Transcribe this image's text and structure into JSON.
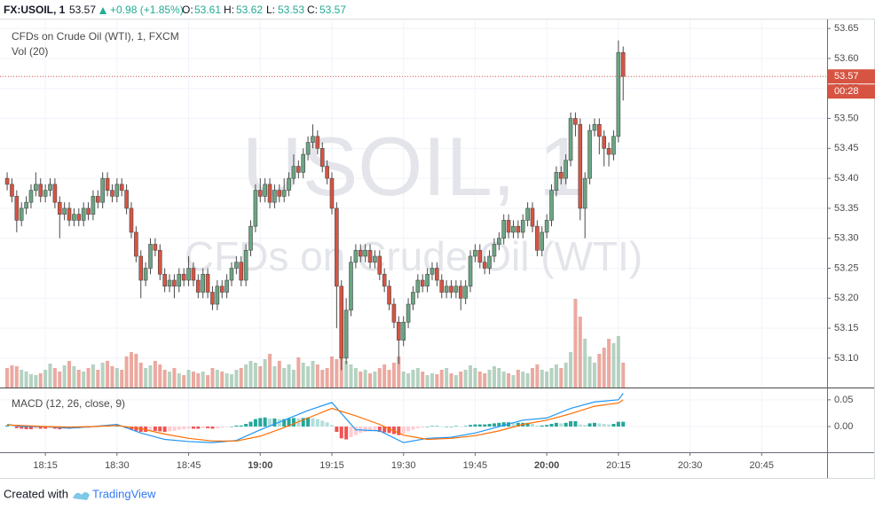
{
  "header": {
    "symbol": "FX:USOIL, 1",
    "last": 53.57,
    "change": "+0.98 (+1.85%)",
    "o_label": "O:",
    "open": 53.61,
    "h_label": "H:",
    "high": 53.62,
    "l_label": "L:",
    "low": 53.53,
    "c_label": "C:",
    "close": 53.57
  },
  "chart_data": [
    {
      "type": "candlestick",
      "title": "CFDs on Crude Oil (WTI), 1, FXCM",
      "volume_label": "Vol (20)",
      "watermark": "USOIL, 1",
      "watermark_sub": "CFDs on Crude Oil (WTI)",
      "countdown": "00:28",
      "up_color": "#6ba583",
      "down_color": "#d75442",
      "grid": true,
      "xlim": [
        1085.5,
        1258.7
      ],
      "ylim": [
        53.051,
        53.665
      ],
      "xticks": [
        {
          "value": 1095,
          "label": "18:15"
        },
        {
          "value": 1110,
          "label": "18:30"
        },
        {
          "value": 1125,
          "label": "18:45"
        },
        {
          "value": 1140,
          "label": "19:00"
        },
        {
          "value": 1155,
          "label": "19:15"
        },
        {
          "value": 1170,
          "label": "19:30"
        },
        {
          "value": 1185,
          "label": "19:45"
        },
        {
          "value": 1200,
          "label": "20:00"
        },
        {
          "value": 1215,
          "label": "20:15"
        },
        {
          "value": 1230,
          "label": "20:30"
        },
        {
          "value": 1245,
          "label": "20:45"
        }
      ],
      "yticks": [
        {
          "value": 53.1,
          "label": "53.10"
        },
        53.15,
        {
          "value": 53.2,
          "label": "53.20"
        },
        53.25,
        {
          "value": 53.3,
          "label": "53.30"
        },
        53.35,
        {
          "value": 53.4,
          "label": "53.40"
        },
        53.45,
        {
          "value": 53.5,
          "label": "53.50"
        },
        53.55,
        {
          "value": 53.6,
          "label": "53.60"
        },
        53.65
      ],
      "x": [
        1087,
        1088,
        1089,
        1090,
        1091,
        1092,
        1093,
        1094,
        1095,
        1096,
        1097,
        1098,
        1099,
        1100,
        1101,
        1102,
        1103,
        1104,
        1105,
        1106,
        1107,
        1108,
        1109,
        1110,
        1111,
        1112,
        1113,
        1114,
        1115,
        1116,
        1117,
        1118,
        1119,
        1120,
        1121,
        1122,
        1123,
        1124,
        1125,
        1126,
        1127,
        1128,
        1129,
        1130,
        1131,
        1132,
        1133,
        1134,
        1135,
        1136,
        1137,
        1138,
        1139,
        1140,
        1141,
        1142,
        1143,
        1144,
        1145,
        1146,
        1147,
        1148,
        1149,
        1150,
        1151,
        1152,
        1153,
        1154,
        1155,
        1156,
        1157,
        1158,
        1159,
        1160,
        1161,
        1162,
        1163,
        1164,
        1165,
        1166,
        1167,
        1168,
        1169,
        1170,
        1171,
        1172,
        1173,
        1174,
        1175,
        1176,
        1177,
        1178,
        1179,
        1180,
        1181,
        1182,
        1183,
        1184,
        1185,
        1186,
        1187,
        1188,
        1189,
        1190,
        1191,
        1192,
        1193,
        1194,
        1195,
        1196,
        1197,
        1198,
        1199,
        1200,
        1201,
        1202,
        1203,
        1204,
        1205,
        1206,
        1207,
        1208,
        1209,
        1210,
        1211,
        1212,
        1213,
        1214,
        1215,
        1216
      ],
      "open": [
        53.4,
        53.39,
        53.37,
        53.33,
        53.35,
        53.36,
        53.38,
        53.39,
        53.37,
        53.38,
        53.39,
        53.36,
        53.34,
        53.35,
        53.33,
        53.34,
        53.33,
        53.35,
        53.34,
        53.37,
        53.36,
        53.4,
        53.38,
        53.37,
        53.39,
        53.38,
        53.35,
        53.31,
        53.27,
        53.23,
        53.25,
        53.29,
        53.28,
        53.24,
        53.22,
        53.23,
        53.22,
        53.24,
        53.23,
        53.25,
        53.23,
        53.21,
        53.24,
        53.21,
        53.19,
        53.22,
        53.21,
        53.23,
        53.25,
        53.26,
        53.23,
        53.28,
        53.32,
        53.38,
        53.37,
        53.39,
        53.36,
        53.38,
        53.37,
        53.38,
        53.4,
        53.42,
        53.41,
        53.44,
        53.46,
        53.47,
        53.45,
        53.42,
        53.4,
        53.35,
        53.22,
        53.1,
        53.18,
        53.26,
        53.28,
        53.27,
        53.28,
        53.26,
        53.27,
        53.24,
        53.22,
        53.19,
        53.16,
        53.13,
        53.16,
        53.19,
        53.21,
        53.23,
        53.22,
        53.24,
        53.25,
        53.23,
        53.21,
        53.22,
        53.21,
        53.22,
        53.2,
        53.22,
        53.27,
        53.28,
        53.26,
        53.25,
        53.27,
        53.29,
        53.3,
        53.33,
        53.31,
        53.32,
        53.31,
        53.33,
        53.35,
        53.32,
        53.28,
        53.31,
        53.33,
        53.38,
        53.41,
        53.4,
        53.43,
        53.5,
        53.49,
        53.35,
        53.4,
        53.48,
        53.49,
        53.47,
        53.45,
        53.44,
        53.47,
        53.61
      ],
      "high": [
        53.41,
        53.4,
        53.38,
        53.36,
        53.37,
        53.39,
        53.41,
        53.4,
        53.39,
        53.4,
        53.4,
        53.37,
        53.36,
        53.36,
        53.35,
        53.35,
        53.36,
        53.36,
        53.38,
        53.38,
        53.41,
        53.41,
        53.39,
        53.4,
        53.4,
        53.39,
        53.36,
        53.32,
        53.28,
        53.26,
        53.3,
        53.3,
        53.29,
        53.25,
        53.24,
        53.24,
        53.25,
        53.25,
        53.27,
        53.26,
        53.24,
        53.25,
        53.25,
        53.22,
        53.23,
        53.23,
        53.24,
        53.26,
        53.27,
        53.27,
        53.29,
        53.33,
        53.39,
        53.4,
        53.4,
        53.4,
        53.39,
        53.39,
        53.4,
        53.41,
        53.44,
        53.43,
        53.45,
        53.47,
        53.49,
        53.48,
        53.46,
        53.43,
        53.41,
        53.36,
        53.23,
        53.2,
        53.27,
        53.29,
        53.29,
        53.29,
        53.29,
        53.28,
        53.28,
        53.25,
        53.23,
        53.2,
        53.17,
        53.17,
        53.2,
        53.22,
        53.24,
        53.24,
        53.25,
        53.26,
        53.26,
        53.24,
        53.23,
        53.23,
        53.23,
        53.23,
        53.23,
        53.28,
        53.29,
        53.29,
        53.27,
        53.28,
        53.3,
        53.31,
        53.34,
        53.34,
        53.33,
        53.33,
        53.34,
        53.36,
        53.36,
        53.33,
        53.32,
        53.34,
        53.39,
        53.42,
        53.42,
        53.44,
        53.51,
        53.51,
        53.5,
        53.41,
        53.49,
        53.5,
        53.5,
        53.48,
        53.46,
        53.48,
        53.63,
        53.62
      ],
      "low": [
        53.38,
        53.36,
        53.31,
        53.32,
        53.34,
        53.35,
        53.37,
        53.36,
        53.36,
        53.37,
        53.35,
        53.3,
        53.33,
        53.32,
        53.32,
        53.32,
        53.32,
        53.33,
        53.33,
        53.35,
        53.35,
        53.37,
        53.36,
        53.36,
        53.37,
        53.34,
        53.3,
        53.26,
        53.2,
        53.22,
        53.24,
        53.27,
        53.23,
        53.21,
        53.21,
        53.2,
        53.21,
        53.22,
        53.22,
        53.22,
        53.2,
        53.2,
        53.2,
        53.18,
        53.18,
        53.2,
        53.2,
        53.22,
        53.24,
        53.22,
        53.22,
        53.27,
        53.31,
        53.36,
        53.36,
        53.35,
        53.35,
        53.36,
        53.36,
        53.37,
        53.39,
        53.4,
        53.4,
        53.43,
        53.45,
        53.44,
        53.41,
        53.39,
        53.34,
        53.15,
        53.08,
        53.09,
        53.17,
        53.25,
        53.26,
        53.26,
        53.25,
        53.25,
        53.23,
        53.21,
        53.18,
        53.15,
        53.09,
        53.12,
        53.15,
        53.18,
        53.2,
        53.21,
        53.21,
        53.23,
        53.22,
        53.2,
        53.2,
        53.2,
        53.2,
        53.18,
        53.19,
        53.21,
        53.26,
        53.25,
        53.24,
        53.24,
        53.26,
        53.28,
        53.29,
        53.3,
        53.3,
        53.3,
        53.3,
        53.32,
        53.31,
        53.27,
        53.27,
        53.3,
        53.32,
        53.37,
        53.39,
        53.39,
        53.42,
        53.47,
        53.33,
        53.3,
        53.39,
        53.47,
        53.44,
        53.42,
        53.42,
        53.43,
        53.46,
        53.53
      ],
      "close": [
        53.39,
        53.37,
        53.33,
        53.35,
        53.36,
        53.38,
        53.39,
        53.37,
        53.38,
        53.39,
        53.36,
        53.34,
        53.35,
        53.33,
        53.34,
        53.33,
        53.35,
        53.34,
        53.37,
        53.36,
        53.4,
        53.38,
        53.37,
        53.39,
        53.38,
        53.35,
        53.31,
        53.27,
        53.23,
        53.25,
        53.29,
        53.28,
        53.24,
        53.22,
        53.23,
        53.22,
        53.24,
        53.23,
        53.25,
        53.23,
        53.21,
        53.24,
        53.21,
        53.19,
        53.22,
        53.21,
        53.23,
        53.25,
        53.26,
        53.23,
        53.28,
        53.32,
        53.38,
        53.37,
        53.39,
        53.36,
        53.38,
        53.37,
        53.38,
        53.4,
        53.42,
        53.41,
        53.44,
        53.46,
        53.47,
        53.45,
        53.42,
        53.4,
        53.35,
        53.22,
        53.1,
        53.18,
        53.26,
        53.28,
        53.27,
        53.28,
        53.26,
        53.27,
        53.24,
        53.22,
        53.19,
        53.16,
        53.13,
        53.16,
        53.19,
        53.21,
        53.23,
        53.22,
        53.24,
        53.25,
        53.23,
        53.21,
        53.22,
        53.21,
        53.22,
        53.2,
        53.22,
        53.27,
        53.28,
        53.26,
        53.25,
        53.27,
        53.29,
        53.3,
        53.33,
        53.31,
        53.32,
        53.31,
        53.33,
        53.35,
        53.32,
        53.28,
        53.31,
        53.33,
        53.38,
        53.41,
        53.4,
        53.43,
        53.5,
        53.49,
        53.35,
        53.4,
        53.48,
        53.49,
        53.47,
        53.45,
        53.44,
        53.47,
        53.61,
        53.57
      ],
      "volume": [
        22,
        25,
        24,
        20,
        18,
        15,
        14,
        16,
        20,
        27,
        22,
        18,
        25,
        30,
        24,
        20,
        18,
        22,
        26,
        20,
        28,
        30,
        24,
        22,
        20,
        35,
        40,
        38,
        28,
        22,
        25,
        30,
        26,
        20,
        18,
        22,
        16,
        14,
        20,
        18,
        16,
        18,
        14,
        22,
        20,
        18,
        16,
        15,
        20,
        22,
        26,
        30,
        28,
        24,
        32,
        38,
        24,
        30,
        22,
        26,
        20,
        34,
        28,
        24,
        30,
        26,
        20,
        22,
        35,
        32,
        38,
        30,
        26,
        22,
        18,
        20,
        16,
        18,
        22,
        26,
        20,
        28,
        35,
        18,
        16,
        20,
        22,
        18,
        14,
        16,
        15,
        20,
        22,
        16,
        14,
        18,
        20,
        25,
        22,
        18,
        16,
        20,
        24,
        22,
        18,
        16,
        14,
        20,
        18,
        16,
        22,
        26,
        20,
        18,
        22,
        26,
        22,
        28,
        40,
        100,
        80,
        55,
        35,
        28,
        38,
        45,
        55,
        50,
        58,
        28
      ]
    },
    {
      "type": "macd",
      "title": "MACD (12, 26, close, 9)",
      "ylim": [
        -0.048,
        0.068
      ],
      "yticks": [
        0.05,
        {
          "value": 0,
          "label": "0.00"
        }
      ],
      "grid": true,
      "hist_colors": [
        "#26a69a",
        "#b2dfdb",
        "#ffcdd2",
        "#ef5350"
      ],
      "hist": [
        0.002,
        0,
        -0.003,
        -0.004,
        -0.005,
        -0.005,
        -0.004,
        -0.004,
        -0.004,
        -0.003,
        -0.004,
        -0.005,
        -0.004,
        -0.004,
        -0.003,
        -0.003,
        -0.002,
        -0.002,
        -0.001,
        0,
        0.002,
        0.002,
        0.001,
        0.001,
        0,
        -0.003,
        -0.006,
        -0.008,
        -0.01,
        -0.01,
        -0.008,
        -0.008,
        -0.009,
        -0.01,
        -0.009,
        -0.008,
        -0.006,
        -0.005,
        -0.004,
        -0.004,
        -0.004,
        -0.003,
        -0.003,
        -0.004,
        -0.003,
        -0.002,
        -0.001,
        0,
        0.002,
        0.002,
        0.005,
        0.009,
        0.014,
        0.016,
        0.017,
        0.015,
        0.015,
        0.014,
        0.014,
        0.015,
        0.016,
        0.015,
        0.016,
        0.017,
        0.016,
        0.014,
        0.011,
        0.008,
        0.003,
        -0.01,
        -0.022,
        -0.024,
        -0.02,
        -0.016,
        -0.012,
        -0.01,
        -0.009,
        -0.008,
        -0.01,
        -0.011,
        -0.012,
        -0.014,
        -0.016,
        -0.013,
        -0.009,
        -0.006,
        -0.003,
        -0.002,
        0,
        0.001,
        0.001,
        0,
        0,
        0,
        0.001,
        0,
        0.001,
        0.003,
        0.004,
        0.004,
        0.004,
        0.005,
        0.006,
        0.007,
        0.008,
        0.008,
        0.007,
        0.007,
        0.007,
        0.007,
        0.005,
        0.002,
        0.002,
        0.003,
        0.005,
        0.007,
        0.006,
        0.007,
        0.01,
        0.01,
        0.004,
        0.003,
        0.006,
        0.007,
        0.006,
        0.005,
        0.004,
        0.005,
        0.009,
        0.009
      ],
      "series": [
        {
          "color": "#2196f3",
          "x": [
            1087,
            1090,
            1095,
            1100,
            1105,
            1110,
            1115,
            1120,
            1125,
            1130,
            1135,
            1140,
            1145,
            1150,
            1155,
            1160,
            1165,
            1170,
            1175,
            1180,
            1185,
            1190,
            1195,
            1200,
            1205,
            1210,
            1215,
            1216
          ],
          "values": [
            0.004,
            0,
            0,
            -0.003,
            0,
            0.004,
            -0.012,
            -0.024,
            -0.028,
            -0.03,
            -0.026,
            -0.006,
            0.012,
            0.03,
            0.045,
            -0.006,
            -0.008,
            -0.03,
            -0.022,
            -0.02,
            -0.012,
            0,
            0.012,
            0.016,
            0.034,
            0.046,
            0.05,
            0.062
          ]
        },
        {
          "color": "#ff6d00",
          "x": [
            1087,
            1090,
            1095,
            1100,
            1105,
            1110,
            1115,
            1120,
            1125,
            1130,
            1135,
            1140,
            1145,
            1150,
            1155,
            1160,
            1165,
            1170,
            1175,
            1180,
            1185,
            1190,
            1195,
            1200,
            1205,
            1210,
            1215,
            1216
          ],
          "values": [
            0.003,
            0.002,
            0,
            -0.001,
            0,
            0.002,
            -0.004,
            -0.014,
            -0.022,
            -0.027,
            -0.027,
            -0.018,
            -0.002,
            0.016,
            0.034,
            0.02,
            0.004,
            -0.016,
            -0.024,
            -0.022,
            -0.017,
            -0.008,
            0.004,
            0.012,
            0.024,
            0.038,
            0.044,
            0.05
          ]
        }
      ]
    }
  ],
  "footer": {
    "created": "Created with",
    "brand": "TradingView"
  }
}
